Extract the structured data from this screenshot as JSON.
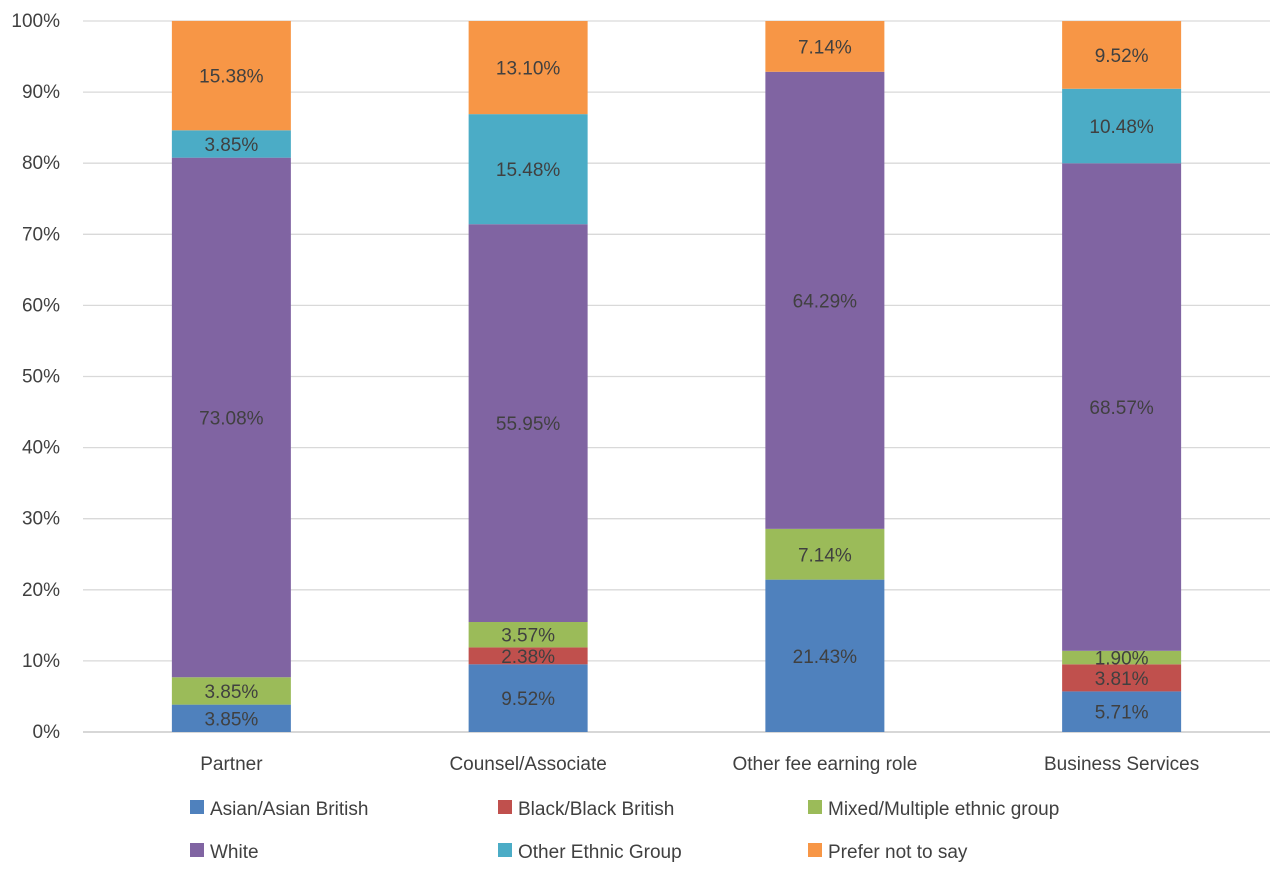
{
  "chart_data": {
    "type": "bar",
    "stacked": true,
    "categories": [
      "Partner",
      "Counsel/Associate",
      "Other fee earning role",
      "Business Services"
    ],
    "ylim": [
      0,
      100
    ],
    "yticks": [
      "0%",
      "10%",
      "20%",
      "30%",
      "40%",
      "50%",
      "60%",
      "70%",
      "80%",
      "90%",
      "100%"
    ],
    "grid": true,
    "legend_position": "bottom",
    "series": [
      {
        "name": "Asian/Asian British",
        "color": "#4F81BD",
        "values": [
          3.85,
          9.52,
          21.43,
          5.71
        ],
        "labels": [
          "3.85%",
          "9.52%",
          "21.43%",
          "5.71%"
        ]
      },
      {
        "name": "Black/Black British",
        "color": "#C0504D",
        "values": [
          0,
          2.38,
          0,
          3.81
        ],
        "labels": [
          "",
          "2.38%",
          "",
          "3.81%"
        ]
      },
      {
        "name": "Mixed/Multiple ethnic group",
        "color": "#9BBB59",
        "values": [
          3.85,
          3.57,
          7.14,
          1.9
        ],
        "labels": [
          "3.85%",
          "3.57%",
          "7.14%",
          "1.90%"
        ]
      },
      {
        "name": "White",
        "color": "#8064A2",
        "values": [
          73.08,
          55.95,
          64.29,
          68.57
        ],
        "labels": [
          "73.08%",
          "55.95%",
          "64.29%",
          "68.57%"
        ]
      },
      {
        "name": "Other Ethnic Group",
        "color": "#4BACC6",
        "values": [
          3.85,
          15.48,
          0,
          10.48
        ],
        "labels": [
          "3.85%",
          "15.48%",
          "",
          "10.48%"
        ]
      },
      {
        "name": "Prefer not to say",
        "color": "#F79646",
        "values": [
          15.38,
          13.1,
          7.14,
          9.52
        ],
        "labels": [
          "15.38%",
          "13.10%",
          "7.14%",
          "9.52%"
        ]
      }
    ]
  }
}
